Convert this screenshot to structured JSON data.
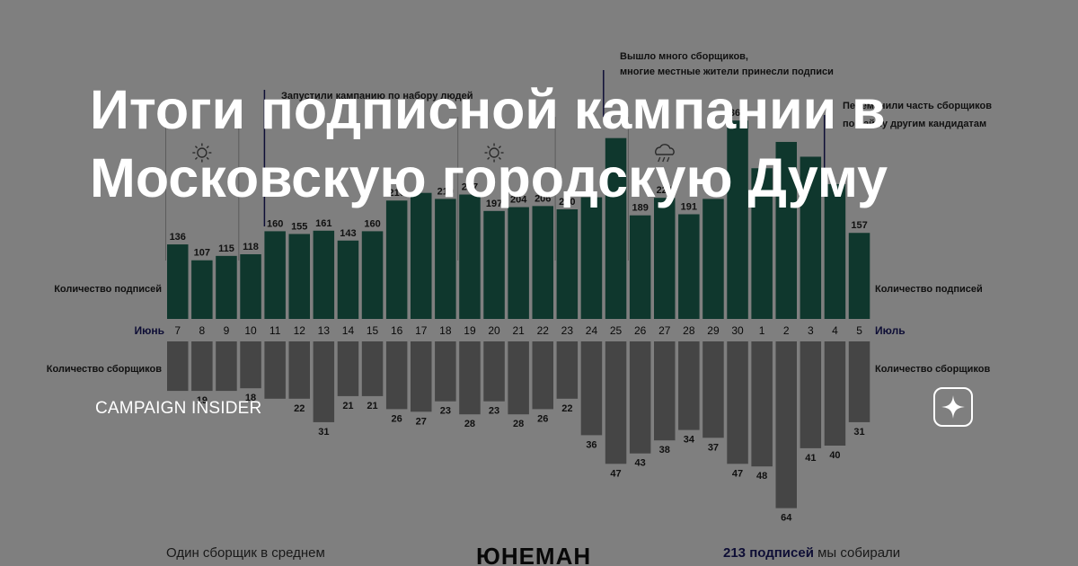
{
  "title": "Итоги подписной кампании в Московскую городскую Думу",
  "brand": "CAMPAIGN INSIDER",
  "colors": {
    "signatures": "#1e6e5a",
    "collectors": "#8a8a8a",
    "month": "#1c1c6b"
  },
  "chart_data": {
    "type": "bar",
    "categories": [
      "7",
      "8",
      "9",
      "10",
      "11",
      "12",
      "13",
      "14",
      "15",
      "16",
      "17",
      "18",
      "19",
      "20",
      "21",
      "22",
      "23",
      "24",
      "25",
      "26",
      "27",
      "28",
      "29",
      "30",
      "1",
      "2",
      "3",
      "4",
      "5"
    ],
    "month_labels": {
      "left": "Июнь",
      "right": "Июль"
    },
    "series": [
      {
        "name": "Количество подписей",
        "values": [
          136,
          107,
          115,
          118,
          160,
          155,
          161,
          143,
          160,
          216,
          230,
          219,
          227,
          197,
          204,
          206,
          200,
          222,
          330,
          189,
          221,
          191,
          219,
          362,
          275,
          323,
          296,
          246,
          157
        ]
      },
      {
        "name": "Количество сборщиков",
        "values": [
          19,
          19,
          19,
          18,
          22,
          22,
          31,
          21,
          21,
          26,
          27,
          23,
          28,
          23,
          28,
          26,
          22,
          36,
          47,
          43,
          38,
          34,
          37,
          47,
          48,
          64,
          41,
          40,
          31
        ]
      }
    ],
    "data_labels_top": [
      "136",
      "107",
      "115",
      "118",
      "160",
      "155",
      "161",
      "143",
      "160",
      "216",
      "",
      "219",
      "227",
      "197",
      "204",
      "206",
      "200",
      "",
      "",
      "189",
      "221",
      "191",
      "",
      "362",
      "",
      "",
      "",
      "",
      "157"
    ],
    "data_labels_bottom": [
      "",
      "19",
      "",
      "18",
      "",
      "22",
      "31",
      "21",
      "21",
      "26",
      "27",
      "23",
      "28",
      "23",
      "28",
      "26",
      "22",
      "36",
      "47",
      "43",
      "38",
      "34",
      "37",
      "47",
      "48",
      "64",
      "41",
      "40",
      "31"
    ],
    "row_labels": {
      "top_left": "Количество подписей",
      "top_right": "Количество подписей",
      "bottom_left": "Количество сборщиков",
      "bottom_right": "Количество сборщиков"
    },
    "annotations": [
      {
        "day": "25",
        "line1": "Вышло много сборщиков,",
        "line2": "многие местные жители принесли подписи"
      },
      {
        "day": "11",
        "line1": "Запустили кампанию по набору людей",
        "line2": ""
      },
      {
        "day": "4",
        "line1": "Переманили часть сборщиков",
        "line2": "по найму другим кандидатам"
      }
    ],
    "weather": [
      {
        "day": "8",
        "icon": "sun-icon"
      },
      {
        "day": "20",
        "icon": "sun-icon"
      },
      {
        "day": "27",
        "icon": "rain-cloud-icon"
      }
    ],
    "footer": {
      "left": "Один сборщик в среднем",
      "center": "ЮНЕМАН",
      "right_bold": "213 подписей",
      "right_rest": " мы собирали"
    }
  }
}
